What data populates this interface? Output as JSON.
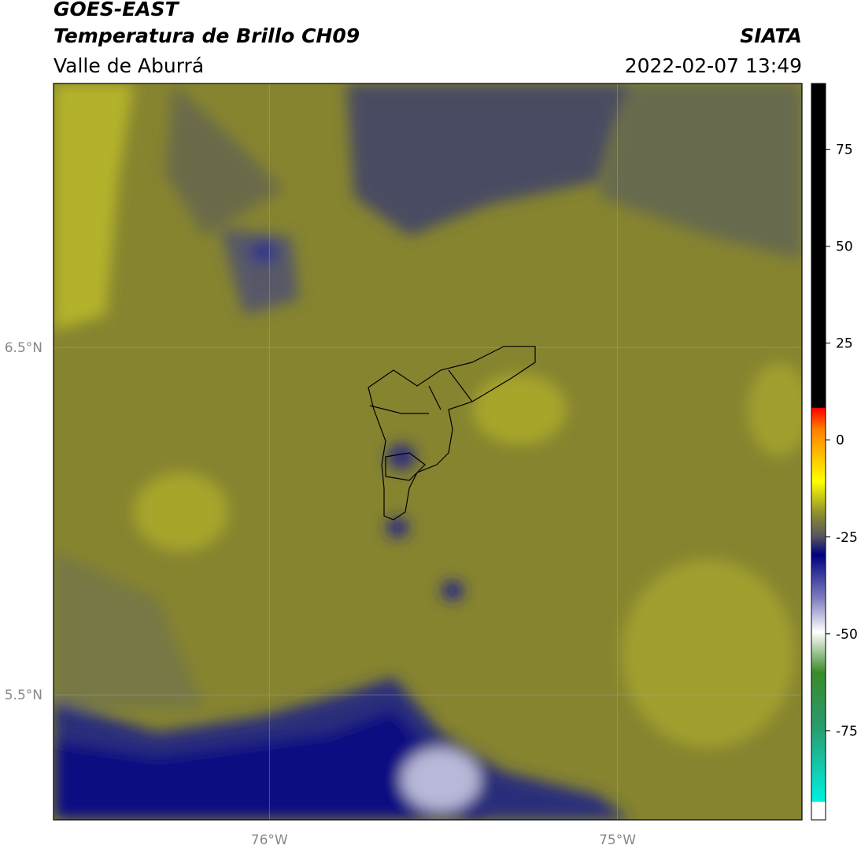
{
  "header": {
    "title": "GOES-EAST",
    "subtitle": "Temperatura de Brillo CH09",
    "region": "Valle de Aburrá",
    "source": "SIATA",
    "datetime": "2022-02-07 13:49"
  },
  "map": {
    "lonlim": [
      -76.62,
      -74.47
    ],
    "latlim": [
      5.14,
      7.26
    ],
    "lat_ticks": [
      {
        "value": 6.5,
        "label": "6.5°N"
      },
      {
        "value": 5.5,
        "label": "5.5°N"
      }
    ],
    "lon_ticks": [
      {
        "value": -76,
        "label": "76°W"
      },
      {
        "value": -75,
        "label": "75°W"
      }
    ]
  },
  "colorbar": {
    "lim": [
      -98,
      92
    ],
    "ticks": [
      75,
      50,
      25,
      0,
      -25,
      -50,
      -75
    ]
  }
}
